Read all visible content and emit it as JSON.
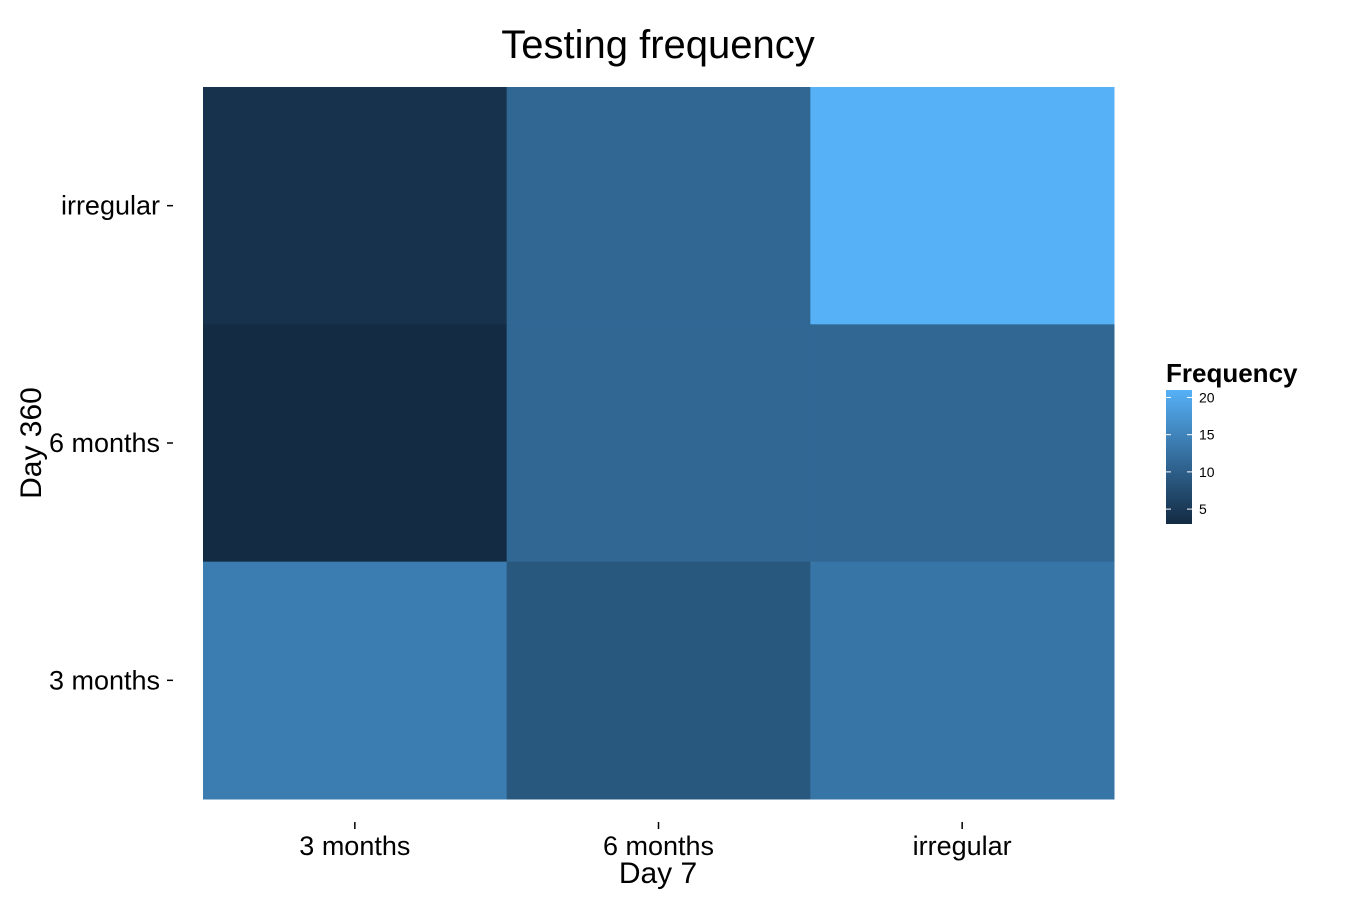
{
  "chart_data": {
    "type": "heatmap",
    "title": "Testing frequency",
    "xlabel": "Day 7",
    "ylabel": "Day 360",
    "x_categories": [
      "3 months",
      "6 months",
      "irregular"
    ],
    "y_categories": [
      "3 months",
      "6 months",
      "irregular"
    ],
    "cells": [
      {
        "x": "3 months",
        "y": "irregular",
        "value": 4
      },
      {
        "x": "6 months",
        "y": "irregular",
        "value": 11
      },
      {
        "x": "irregular",
        "y": "irregular",
        "value": 21
      },
      {
        "x": "3 months",
        "y": "6 months",
        "value": 3
      },
      {
        "x": "6 months",
        "y": "6 months",
        "value": 11
      },
      {
        "x": "irregular",
        "y": "6 months",
        "value": 11
      },
      {
        "x": "3 months",
        "y": "3 months",
        "value": 14
      },
      {
        "x": "6 months",
        "y": "3 months",
        "value": 9
      },
      {
        "x": "irregular",
        "y": "3 months",
        "value": 13
      }
    ],
    "legend": {
      "title": "Frequency",
      "ticks": [
        5,
        10,
        15,
        20
      ],
      "range": [
        3,
        21
      ],
      "low_color": "#132b43",
      "high_color": "#56b1f7",
      "placement": "right"
    },
    "grid": false
  }
}
